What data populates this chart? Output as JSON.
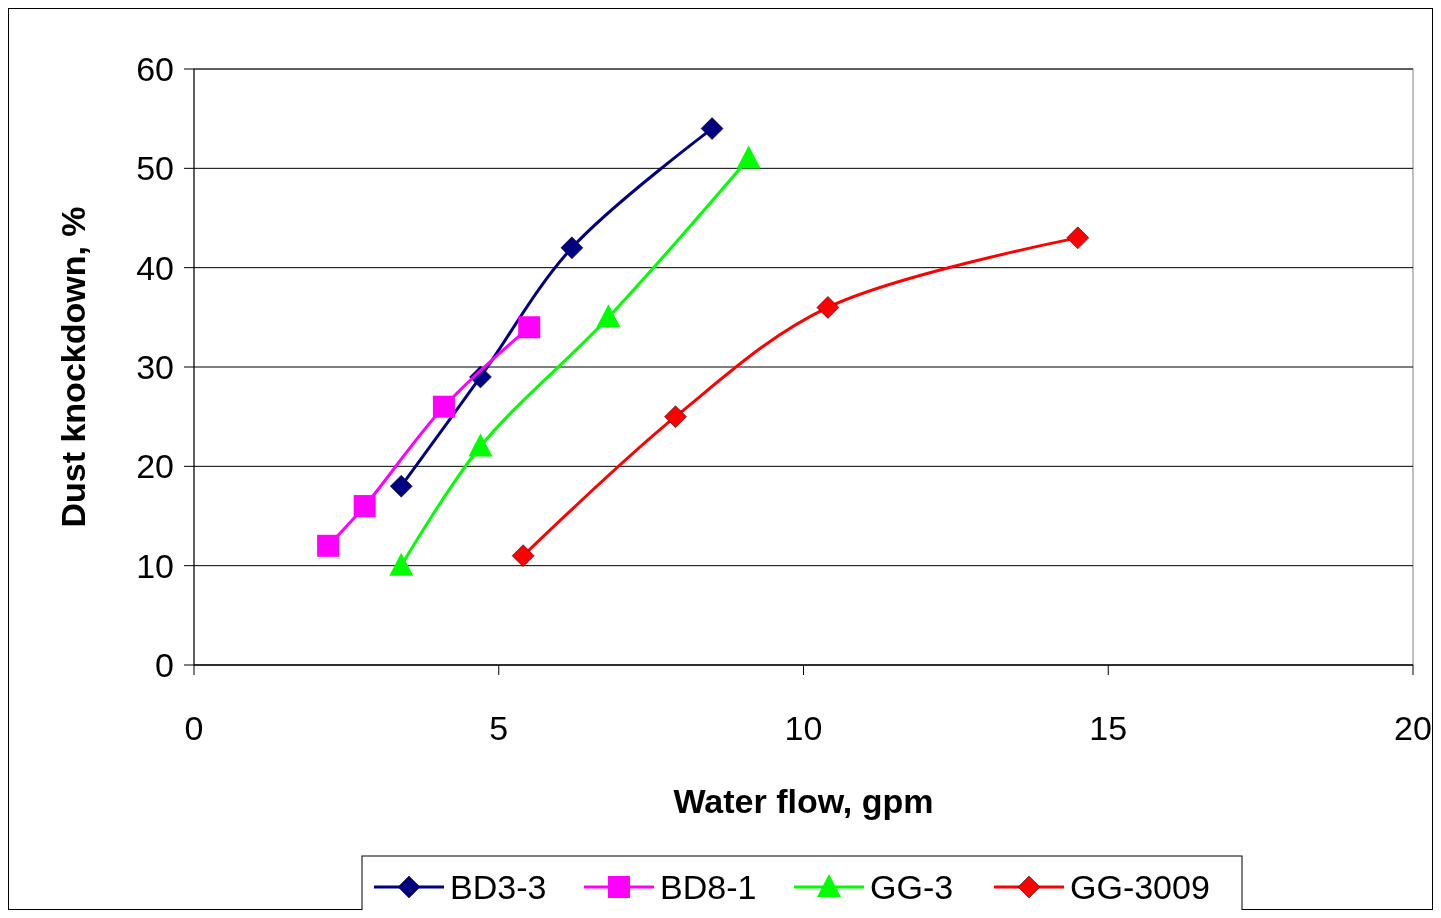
{
  "chart_data": {
    "type": "line",
    "xlabel": "Water flow, gpm",
    "ylabel": "Dust knockdown, %",
    "xlim": [
      0,
      20
    ],
    "xticks": [
      0,
      5,
      10,
      15,
      20
    ],
    "ylim": [
      0,
      60
    ],
    "yticks": [
      0,
      10,
      20,
      30,
      40,
      50,
      60
    ],
    "grid": "y",
    "legend": "bottom",
    "series": [
      {
        "name": "BD3-3",
        "color": "#000080",
        "marker": "diamond",
        "x": [
          3.4,
          4.7,
          6.2,
          8.5
        ],
        "values": [
          18,
          29,
          42,
          54
        ]
      },
      {
        "name": "BD8-1",
        "color": "#ff00ff",
        "marker": "square",
        "x": [
          2.2,
          2.8,
          4.1,
          5.5
        ],
        "values": [
          12,
          16,
          26,
          34
        ]
      },
      {
        "name": "GG-3",
        "color": "#00ff00",
        "marker": "triangle",
        "x": [
          3.4,
          4.7,
          6.8,
          9.1
        ],
        "values": [
          10,
          22,
          35,
          51
        ]
      },
      {
        "name": "GG-3009",
        "color": "#ff0000",
        "marker": "diamond",
        "x": [
          5.4,
          7.9,
          10.4,
          14.5
        ],
        "values": [
          11,
          25,
          36,
          43
        ]
      }
    ]
  }
}
